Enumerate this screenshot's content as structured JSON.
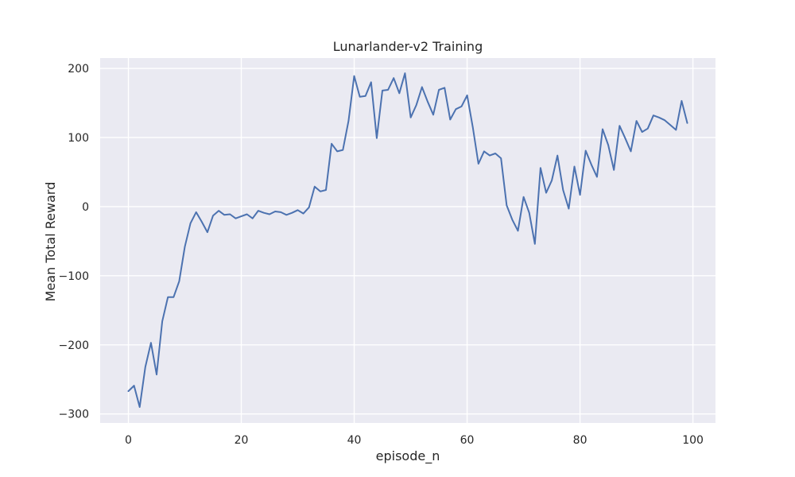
{
  "chart_data": {
    "type": "line",
    "title": "Lunarlander-v2 Training",
    "xlabel": "episode_n",
    "ylabel": "Mean Total Reward",
    "xlim": [
      -5,
      104
    ],
    "ylim": [
      -313,
      215
    ],
    "xticks": [
      0,
      20,
      40,
      60,
      80,
      100
    ],
    "yticks": [
      -300,
      -200,
      -100,
      0,
      100,
      200
    ],
    "ytick_labels": [
      "−300",
      "−200",
      "−100",
      "0",
      "100",
      "200"
    ],
    "grid": true,
    "colors": {
      "background": "#eaeaf2",
      "series": "#4c72b0",
      "grid": "#ffffff"
    },
    "series": [
      {
        "x": [
          0,
          1,
          2,
          3,
          4,
          5,
          6,
          7,
          8,
          9,
          10,
          11,
          12,
          13,
          14,
          15,
          16,
          17,
          18,
          19,
          20,
          21,
          22,
          23,
          24,
          25,
          26,
          27,
          28,
          29,
          30,
          31,
          32,
          33,
          34,
          35,
          36,
          37,
          38,
          39,
          40,
          41,
          42,
          43,
          44,
          45,
          46,
          47,
          48,
          49,
          50,
          51,
          52,
          53,
          54,
          55,
          56,
          57,
          58,
          59,
          60,
          61,
          62,
          63,
          64,
          65,
          66,
          67,
          68,
          69,
          70,
          71,
          72,
          73,
          74,
          75,
          76,
          77,
          78,
          79,
          80,
          81,
          82,
          83,
          84,
          85,
          86,
          87,
          88,
          89,
          90,
          91,
          92,
          93,
          94,
          95,
          96,
          97,
          98,
          99
        ],
        "values": [
          -267,
          -259,
          -290,
          -232,
          -197,
          -243,
          -166,
          -131,
          -131,
          -108,
          -58,
          -24,
          -8,
          -22,
          -37,
          -13,
          -6,
          -12,
          -11,
          -17,
          -14,
          -11,
          -17,
          -6,
          -9,
          -11,
          -7,
          -8,
          -12,
          -9,
          -5,
          -10,
          -1,
          29,
          22,
          24,
          91,
          80,
          82,
          124,
          189,
          159,
          160,
          180,
          99,
          168,
          169,
          186,
          164,
          193,
          129,
          147,
          173,
          152,
          133,
          169,
          172,
          126,
          141,
          145,
          161,
          115,
          62,
          80,
          74,
          77,
          70,
          2,
          -19,
          -35,
          14,
          -9,
          -54,
          56,
          20,
          38,
          74,
          24,
          -3,
          58,
          17,
          81,
          61,
          43,
          112,
          89,
          53,
          117,
          99,
          80,
          124,
          108,
          113,
          132,
          129,
          125,
          118,
          111,
          153,
          121
        ]
      }
    ]
  }
}
